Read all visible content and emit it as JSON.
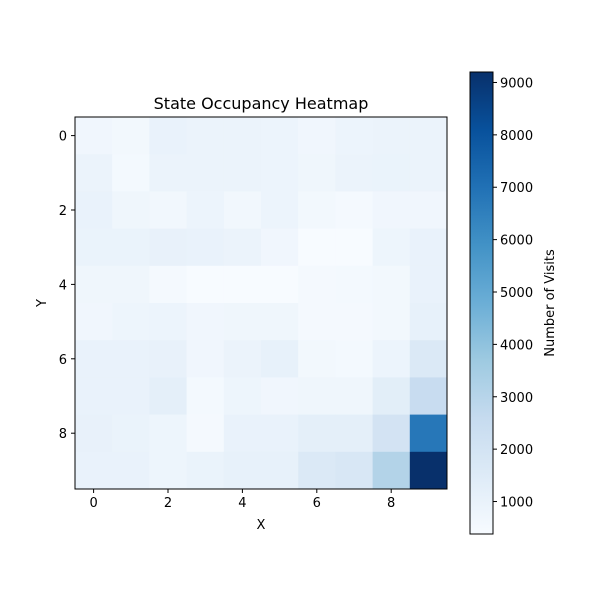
{
  "chart_data": {
    "type": "heatmap",
    "title": "State Occupancy Heatmap",
    "xlabel": "X",
    "ylabel": "Y",
    "x_ticks": [
      0,
      2,
      4,
      6,
      8
    ],
    "y_ticks": [
      0,
      2,
      4,
      6,
      8
    ],
    "x_categories": [
      0,
      1,
      2,
      3,
      4,
      5,
      6,
      7,
      8,
      9
    ],
    "y_categories": [
      0,
      1,
      2,
      3,
      4,
      5,
      6,
      7,
      8,
      9
    ],
    "y_axis_inverted": true,
    "colormap": "Blues",
    "colorbar": {
      "label": "Number of Visits",
      "min": 380,
      "max": 9200,
      "ticks": [
        1000,
        2000,
        3000,
        4000,
        5000,
        6000,
        7000,
        8000,
        9000
      ]
    },
    "values": [
      [
        700,
        600,
        1000,
        900,
        900,
        850,
        700,
        850,
        900,
        900
      ],
      [
        900,
        550,
        900,
        900,
        900,
        850,
        750,
        900,
        950,
        900
      ],
      [
        1000,
        750,
        650,
        850,
        650,
        850,
        600,
        500,
        700,
        700
      ],
      [
        950,
        950,
        1050,
        1000,
        900,
        700,
        400,
        400,
        800,
        1000
      ],
      [
        750,
        750,
        500,
        400,
        400,
        400,
        500,
        550,
        600,
        1000
      ],
      [
        700,
        800,
        850,
        700,
        750,
        750,
        500,
        500,
        600,
        1100
      ],
      [
        1000,
        1000,
        1050,
        700,
        900,
        1100,
        600,
        550,
        850,
        1600
      ],
      [
        1000,
        1000,
        1200,
        550,
        800,
        700,
        750,
        750,
        1300,
        2500
      ],
      [
        1050,
        950,
        800,
        500,
        1000,
        1000,
        1200,
        1200,
        2000,
        6800
      ],
      [
        1000,
        1000,
        800,
        950,
        1100,
        1100,
        1600,
        1750,
        3100,
        9200
      ]
    ]
  }
}
